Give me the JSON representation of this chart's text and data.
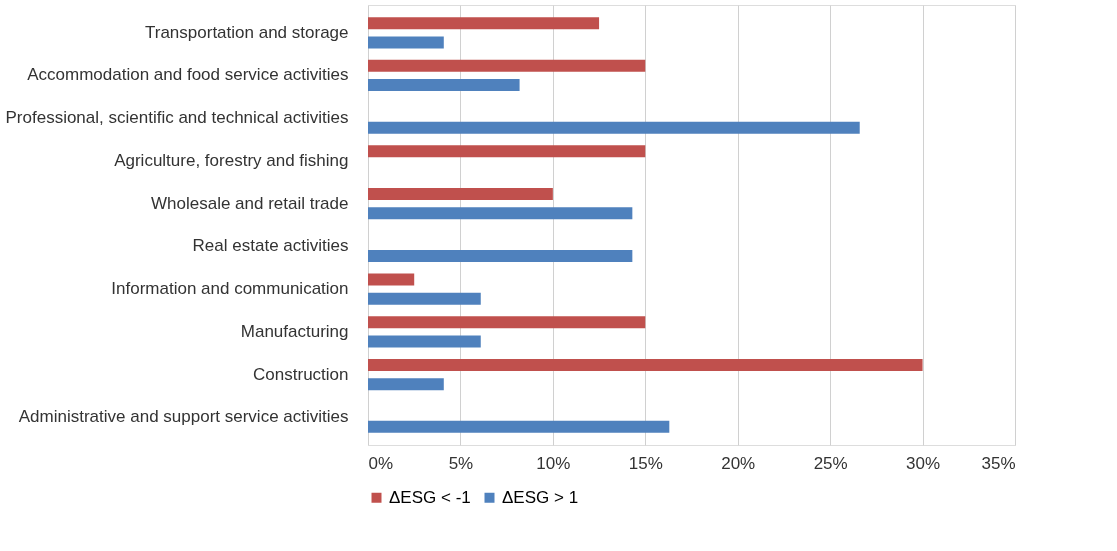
{
  "chart_data": {
    "type": "bar",
    "orientation": "horizontal",
    "categories": [
      "Transportation and storage",
      "Accommodation and food service activities",
      "Professional, scientific and technical activities",
      "Agriculture, forestry and fishing",
      "Wholesale and retail trade",
      "Real estate activities",
      "Information and communication",
      "Manufacturing",
      "Construction",
      "Administrative and support service activities"
    ],
    "series": [
      {
        "name": "ΔESG < -1",
        "color": "#c0504d",
        "values": [
          12.5,
          15,
          null,
          15,
          10,
          null,
          2.5,
          15,
          30,
          null
        ]
      },
      {
        "name": "ΔESG > 1",
        "color": "#4f81bd",
        "values": [
          4.1,
          8.2,
          26.6,
          null,
          14.3,
          14.3,
          6.1,
          6.1,
          4.1,
          16.3
        ]
      }
    ],
    "xlim": [
      0,
      35
    ],
    "xticks": [
      {
        "value": 0,
        "label": "0%"
      },
      {
        "value": 5,
        "label": "5%"
      },
      {
        "value": 10,
        "label": "10%"
      },
      {
        "value": 15,
        "label": "15%"
      },
      {
        "value": 20,
        "label": "20%"
      },
      {
        "value": 25,
        "label": "25%"
      },
      {
        "value": 30,
        "label": "30%"
      },
      {
        "value": 35,
        "label": "35%"
      }
    ],
    "grid": "x",
    "legend": "bottom"
  }
}
